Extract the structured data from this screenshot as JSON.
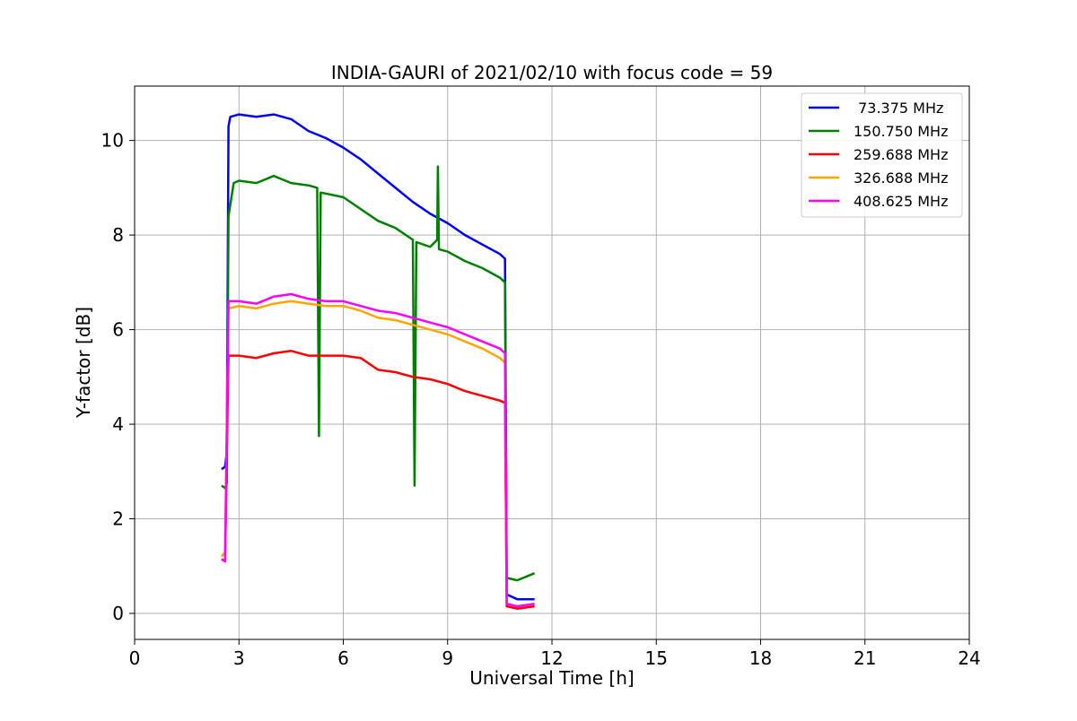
{
  "chart_data": {
    "type": "line",
    "title": "INDIA-GAURI of 2021/02/10 with focus code = 59",
    "xlabel": "Universal Time [h]",
    "ylabel": "Y-factor [dB]",
    "xlim": [
      0,
      24
    ],
    "ylim": [
      -0.55,
      11.15
    ],
    "xticks": [
      0,
      3,
      6,
      9,
      12,
      15,
      18,
      21,
      24
    ],
    "yticks": [
      0,
      2,
      4,
      6,
      8,
      10
    ],
    "grid": true,
    "legend_position": "top-right",
    "series": [
      {
        "name": " 73.375 MHz",
        "color": "#0000ff",
        "points": [
          [
            2.5,
            3.05
          ],
          [
            2.6,
            3.1
          ],
          [
            2.65,
            3.4
          ],
          [
            2.7,
            10.3
          ],
          [
            2.75,
            10.5
          ],
          [
            3.0,
            10.55
          ],
          [
            3.5,
            10.5
          ],
          [
            4.0,
            10.55
          ],
          [
            4.5,
            10.45
          ],
          [
            5.0,
            10.2
          ],
          [
            5.5,
            10.05
          ],
          [
            6.0,
            9.85
          ],
          [
            6.5,
            9.6
          ],
          [
            7.0,
            9.3
          ],
          [
            7.5,
            9.0
          ],
          [
            8.0,
            8.7
          ],
          [
            8.5,
            8.45
          ],
          [
            9.0,
            8.25
          ],
          [
            9.5,
            8.0
          ],
          [
            10.0,
            7.8
          ],
          [
            10.5,
            7.6
          ],
          [
            10.65,
            7.5
          ],
          [
            10.7,
            0.4
          ],
          [
            11.0,
            0.3
          ],
          [
            11.5,
            0.3
          ]
        ]
      },
      {
        "name": "150.750 MHz",
        "color": "#008000",
        "points": [
          [
            2.5,
            2.7
          ],
          [
            2.6,
            2.65
          ],
          [
            2.65,
            2.75
          ],
          [
            2.7,
            8.4
          ],
          [
            2.85,
            9.1
          ],
          [
            3.0,
            9.15
          ],
          [
            3.5,
            9.1
          ],
          [
            4.0,
            9.25
          ],
          [
            4.5,
            9.1
          ],
          [
            5.0,
            9.05
          ],
          [
            5.25,
            9.0
          ],
          [
            5.3,
            3.75
          ],
          [
            5.35,
            8.9
          ],
          [
            6.0,
            8.8
          ],
          [
            6.5,
            8.55
          ],
          [
            7.0,
            8.3
          ],
          [
            7.5,
            8.15
          ],
          [
            8.0,
            7.9
          ],
          [
            8.05,
            2.7
          ],
          [
            8.1,
            7.85
          ],
          [
            8.5,
            7.75
          ],
          [
            8.7,
            7.9
          ],
          [
            8.72,
            9.45
          ],
          [
            8.75,
            7.7
          ],
          [
            9.0,
            7.65
          ],
          [
            9.5,
            7.45
          ],
          [
            10.0,
            7.3
          ],
          [
            10.5,
            7.1
          ],
          [
            10.65,
            7.0
          ],
          [
            10.7,
            0.75
          ],
          [
            11.0,
            0.7
          ],
          [
            11.5,
            0.85
          ]
        ]
      },
      {
        "name": "259.688 MHz",
        "color": "#ff0000",
        "points": [
          [
            2.5,
            1.15
          ],
          [
            2.6,
            1.1
          ],
          [
            2.7,
            5.45
          ],
          [
            3.0,
            5.45
          ],
          [
            3.5,
            5.4
          ],
          [
            4.0,
            5.5
          ],
          [
            4.5,
            5.55
          ],
          [
            5.0,
            5.45
          ],
          [
            5.5,
            5.45
          ],
          [
            6.0,
            5.45
          ],
          [
            6.5,
            5.4
          ],
          [
            7.0,
            5.15
          ],
          [
            7.5,
            5.1
          ],
          [
            8.0,
            5.0
          ],
          [
            8.5,
            4.95
          ],
          [
            9.0,
            4.85
          ],
          [
            9.5,
            4.7
          ],
          [
            10.0,
            4.6
          ],
          [
            10.5,
            4.5
          ],
          [
            10.65,
            4.45
          ],
          [
            10.7,
            0.15
          ],
          [
            11.0,
            0.1
          ],
          [
            11.5,
            0.15
          ]
        ]
      },
      {
        "name": "326.688 MHz",
        "color": "#ffa500",
        "points": [
          [
            2.5,
            1.2
          ],
          [
            2.6,
            1.3
          ],
          [
            2.7,
            6.45
          ],
          [
            3.0,
            6.5
          ],
          [
            3.5,
            6.45
          ],
          [
            4.0,
            6.55
          ],
          [
            4.5,
            6.6
          ],
          [
            5.0,
            6.55
          ],
          [
            5.5,
            6.5
          ],
          [
            6.0,
            6.5
          ],
          [
            6.5,
            6.4
          ],
          [
            7.0,
            6.25
          ],
          [
            7.5,
            6.2
          ],
          [
            8.0,
            6.1
          ],
          [
            8.5,
            6.0
          ],
          [
            9.0,
            5.9
          ],
          [
            9.5,
            5.75
          ],
          [
            10.0,
            5.6
          ],
          [
            10.5,
            5.4
          ],
          [
            10.65,
            5.3
          ],
          [
            10.7,
            0.2
          ],
          [
            11.0,
            0.15
          ],
          [
            11.5,
            0.2
          ]
        ]
      },
      {
        "name": "408.625 MHz",
        "color": "#ff00ff",
        "points": [
          [
            2.5,
            1.15
          ],
          [
            2.6,
            1.1
          ],
          [
            2.7,
            6.6
          ],
          [
            3.0,
            6.6
          ],
          [
            3.5,
            6.55
          ],
          [
            4.0,
            6.7
          ],
          [
            4.5,
            6.75
          ],
          [
            5.0,
            6.65
          ],
          [
            5.5,
            6.6
          ],
          [
            6.0,
            6.6
          ],
          [
            6.5,
            6.5
          ],
          [
            7.0,
            6.4
          ],
          [
            7.5,
            6.35
          ],
          [
            8.0,
            6.25
          ],
          [
            8.5,
            6.15
          ],
          [
            9.0,
            6.05
          ],
          [
            9.5,
            5.9
          ],
          [
            10.0,
            5.75
          ],
          [
            10.5,
            5.6
          ],
          [
            10.65,
            5.5
          ],
          [
            10.7,
            0.2
          ],
          [
            11.0,
            0.15
          ],
          [
            11.5,
            0.2
          ]
        ]
      }
    ]
  }
}
